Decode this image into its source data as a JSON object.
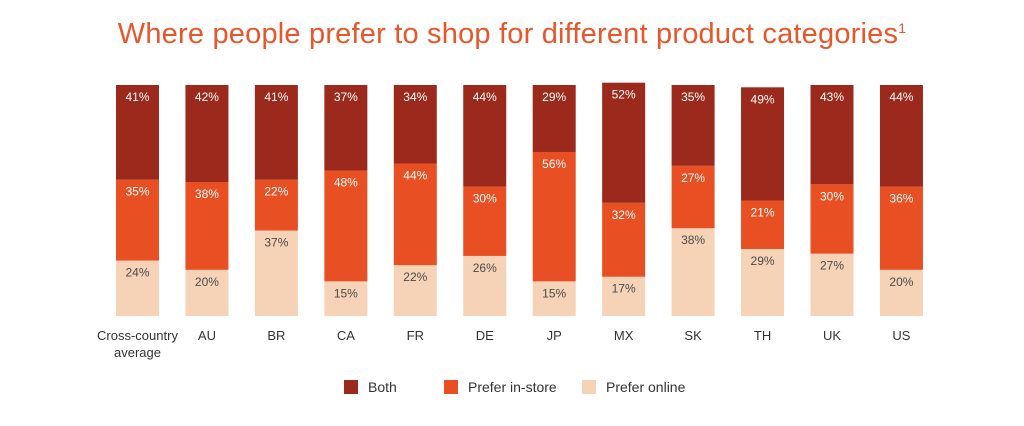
{
  "title": "Where people prefer to shop for different product categories",
  "title_sup": "1",
  "colors": {
    "both": "#9b2a1c",
    "in_store": "#e84f22",
    "online": "#f6d3b7",
    "label_dark": "#ffffff",
    "label_light": "#4a4a4a",
    "title": "#e8562a"
  },
  "legend": [
    {
      "name": "Both",
      "color": "#9b2a1c"
    },
    {
      "name": "Prefer in-store",
      "color": "#e84f22"
    },
    {
      "name": "Prefer online",
      "color": "#f6d3b7"
    }
  ],
  "chart_data": {
    "type": "bar",
    "stacked": true,
    "title": "Where people prefer to shop for different product categories",
    "categories": [
      "Cross-country average",
      "AU",
      "BR",
      "CA",
      "FR",
      "DE",
      "JP",
      "MX",
      "SK",
      "TH",
      "UK",
      "US"
    ],
    "category_lines": [
      [
        "Cross-country",
        "average"
      ],
      [
        "AU"
      ],
      [
        "BR"
      ],
      [
        "CA"
      ],
      [
        "FR"
      ],
      [
        "DE"
      ],
      [
        "JP"
      ],
      [
        "MX"
      ],
      [
        "SK"
      ],
      [
        "TH"
      ],
      [
        "UK"
      ],
      [
        "US"
      ]
    ],
    "series": [
      {
        "name": "Prefer online",
        "values": [
          24,
          20,
          37,
          15,
          22,
          26,
          15,
          17,
          38,
          29,
          27,
          20
        ]
      },
      {
        "name": "Prefer in-store",
        "values": [
          35,
          38,
          22,
          48,
          44,
          30,
          56,
          32,
          27,
          21,
          30,
          36
        ]
      },
      {
        "name": "Both",
        "values": [
          41,
          42,
          41,
          37,
          34,
          44,
          29,
          52,
          35,
          49,
          43,
          44
        ]
      }
    ],
    "value_suffix": "%",
    "ylim": [
      0,
      100
    ],
    "grid": false,
    "legend_position": "bottom"
  }
}
